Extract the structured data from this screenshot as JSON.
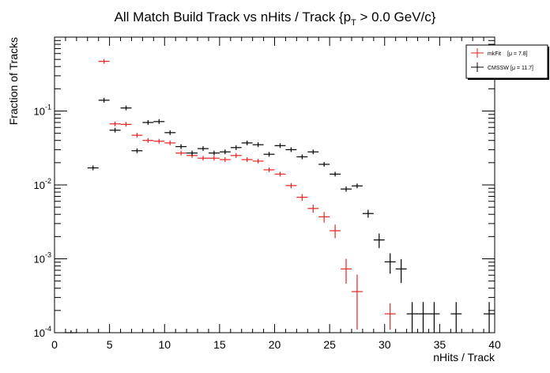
{
  "chart_data": {
    "type": "scatter",
    "title_main": "All Match Build Track vs nHits / Track {p",
    "title_sub": "T",
    "title_rest": " > 0.0 GeV/c}",
    "xlabel": "nHits / Track",
    "ylabel": "Fraction of Tracks",
    "xlim": [
      0,
      40
    ],
    "ylim": [
      0.0001,
      1
    ],
    "yscale": "log",
    "x_ticks": [
      "0",
      "5",
      "10",
      "15",
      "20",
      "25",
      "30",
      "35",
      "40"
    ],
    "y_ticks": [
      {
        "base": "10",
        "exp": "-4",
        "value": 0.0001
      },
      {
        "base": "10",
        "exp": "-3",
        "value": 0.001
      },
      {
        "base": "10",
        "exp": "-2",
        "value": 0.01
      },
      {
        "base": "10",
        "exp": "-1",
        "value": 0.1
      }
    ],
    "legend_position": "top-right",
    "series": [
      {
        "name": "mkFit",
        "stat": "[μ =  7.8]",
        "color": "#e8211f",
        "points": [
          {
            "x": 4.5,
            "y": 0.47,
            "ey": 0.004
          },
          {
            "x": 5.5,
            "y": 0.067,
            "ey": 0.0015
          },
          {
            "x": 6.5,
            "y": 0.066,
            "ey": 0.0015
          },
          {
            "x": 7.5,
            "y": 0.047,
            "ey": 0.0013
          },
          {
            "x": 8.5,
            "y": 0.04,
            "ey": 0.0012
          },
          {
            "x": 9.5,
            "y": 0.039,
            "ey": 0.0012
          },
          {
            "x": 10.5,
            "y": 0.037,
            "ey": 0.0012
          },
          {
            "x": 11.5,
            "y": 0.027,
            "ey": 0.001
          },
          {
            "x": 12.5,
            "y": 0.025,
            "ey": 0.001
          },
          {
            "x": 13.5,
            "y": 0.023,
            "ey": 0.001
          },
          {
            "x": 14.5,
            "y": 0.023,
            "ey": 0.001
          },
          {
            "x": 15.5,
            "y": 0.022,
            "ey": 0.001
          },
          {
            "x": 16.5,
            "y": 0.025,
            "ey": 0.001
          },
          {
            "x": 17.5,
            "y": 0.022,
            "ey": 0.001
          },
          {
            "x": 18.5,
            "y": 0.021,
            "ey": 0.001
          },
          {
            "x": 19.5,
            "y": 0.016,
            "ey": 0.0009
          },
          {
            "x": 20.5,
            "y": 0.014,
            "ey": 0.0009
          },
          {
            "x": 21.5,
            "y": 0.0098,
            "ey": 0.0008
          },
          {
            "x": 22.5,
            "y": 0.0068,
            "ey": 0.0007
          },
          {
            "x": 23.5,
            "y": 0.0048,
            "ey": 0.0006
          },
          {
            "x": 24.5,
            "y": 0.0037,
            "ey": 0.0006
          },
          {
            "x": 25.5,
            "y": 0.0024,
            "ey": 0.0005
          },
          {
            "x": 26.5,
            "y": 0.00073,
            "ey": 0.00027
          },
          {
            "x": 27.5,
            "y": 0.00036,
            "ey": 0.00025
          },
          {
            "x": 30.5,
            "y": 0.00018,
            "ey": 7e-05
          }
        ]
      },
      {
        "name": "CMSSW",
        "stat": "[μ = 11.7]",
        "color": "#000000",
        "points": [
          {
            "x": 1.5,
            "y": 0.0001,
            "ey": 0.0
          },
          {
            "x": 3.5,
            "y": 0.017,
            "ey": 0.001
          },
          {
            "x": 4.5,
            "y": 0.14,
            "ey": 0.003
          },
          {
            "x": 5.5,
            "y": 0.055,
            "ey": 0.0015
          },
          {
            "x": 6.5,
            "y": 0.11,
            "ey": 0.002
          },
          {
            "x": 7.5,
            "y": 0.029,
            "ey": 0.0011
          },
          {
            "x": 8.5,
            "y": 0.07,
            "ey": 0.0016
          },
          {
            "x": 9.5,
            "y": 0.072,
            "ey": 0.0016
          },
          {
            "x": 10.5,
            "y": 0.051,
            "ey": 0.0014
          },
          {
            "x": 11.5,
            "y": 0.033,
            "ey": 0.0012
          },
          {
            "x": 12.5,
            "y": 0.027,
            "ey": 0.001
          },
          {
            "x": 13.5,
            "y": 0.031,
            "ey": 0.001
          },
          {
            "x": 14.5,
            "y": 0.027,
            "ey": 0.001
          },
          {
            "x": 15.5,
            "y": 0.028,
            "ey": 0.001
          },
          {
            "x": 16.5,
            "y": 0.032,
            "ey": 0.001
          },
          {
            "x": 17.5,
            "y": 0.037,
            "ey": 0.0011
          },
          {
            "x": 18.5,
            "y": 0.035,
            "ey": 0.0011
          },
          {
            "x": 19.5,
            "y": 0.026,
            "ey": 0.001
          },
          {
            "x": 20.5,
            "y": 0.034,
            "ey": 0.0011
          },
          {
            "x": 21.5,
            "y": 0.03,
            "ey": 0.001
          },
          {
            "x": 22.5,
            "y": 0.024,
            "ey": 0.001
          },
          {
            "x": 23.5,
            "y": 0.028,
            "ey": 0.001
          },
          {
            "x": 24.5,
            "y": 0.019,
            "ey": 0.0009
          },
          {
            "x": 25.5,
            "y": 0.014,
            "ey": 0.0008
          },
          {
            "x": 26.5,
            "y": 0.0088,
            "ey": 0.0007
          },
          {
            "x": 27.5,
            "y": 0.0097,
            "ey": 0.0007
          },
          {
            "x": 28.5,
            "y": 0.0041,
            "ey": 0.0005
          },
          {
            "x": 29.5,
            "y": 0.0018,
            "ey": 0.0004
          },
          {
            "x": 30.5,
            "y": 0.00091,
            "ey": 0.00028
          },
          {
            "x": 31.5,
            "y": 0.00073,
            "ey": 0.00026
          },
          {
            "x": 32.5,
            "y": 0.00018,
            "ey": 8e-05
          },
          {
            "x": 33.5,
            "y": 0.00018,
            "ey": 8e-05
          },
          {
            "x": 34.5,
            "y": 0.00018,
            "ey": 8e-05
          },
          {
            "x": 36.5,
            "y": 0.00018,
            "ey": 8e-05
          },
          {
            "x": 39.5,
            "y": 0.00018,
            "ey": 8e-05
          }
        ]
      }
    ]
  }
}
